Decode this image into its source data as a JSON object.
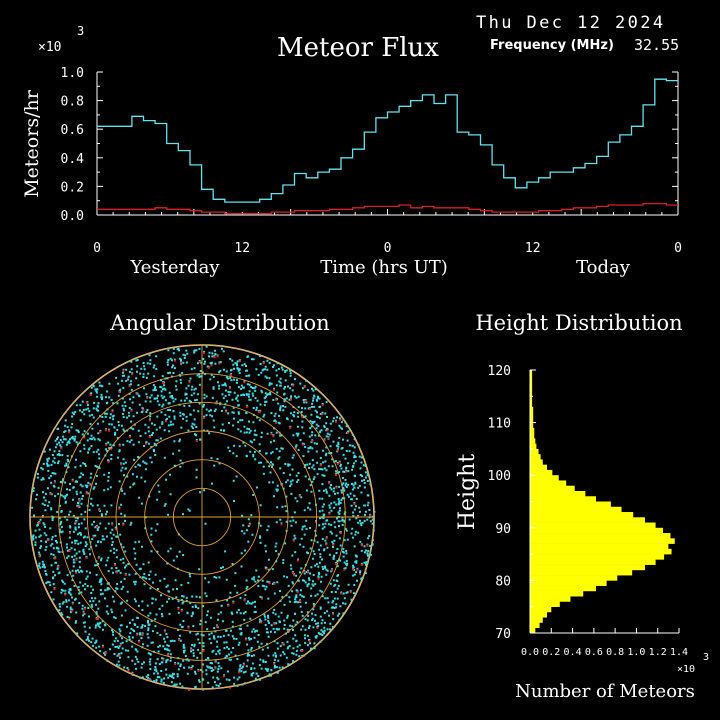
{
  "header": {
    "date": "Thu Dec 12 2024",
    "title": "Meteor Flux",
    "frequency_label": "Frequency (MHz)",
    "frequency_value": "32.55",
    "multiplier": "×10",
    "multiplier_exp": "3"
  },
  "colors": {
    "flux_total": "#5fe3ef",
    "flux_underdense": "#d42020",
    "axis": "#ffffff",
    "histogram": "#ffff00",
    "scatter_primary": "#38dfe8",
    "scatter_secondary": "#e02020",
    "rings": "#e0a030"
  },
  "chart_data": [
    {
      "type": "line",
      "title": "Meteor Flux",
      "xlabel": "Time (hrs UT)",
      "ylabel": "Meteors/hr",
      "y_multiplier": "×10 3",
      "ylim": [
        0,
        1.0
      ],
      "xlim": [
        0,
        72
      ],
      "step": true,
      "x_ticks": [
        0,
        12,
        24,
        36,
        48,
        60,
        72
      ],
      "x_tick_labels": [
        "0",
        "12",
        "0",
        "12",
        "0"
      ],
      "x_tick_label_positions": [
        0,
        12,
        24,
        36,
        48
      ],
      "y_ticks": [
        0.0,
        0.2,
        0.4,
        0.6,
        0.8,
        1.0
      ],
      "y_tick_labels": [
        "0.0",
        "0.2",
        "0.4",
        "0.6",
        "0.8",
        "1.0"
      ],
      "period_labels": [
        "Yesterday",
        "Time (hrs UT)",
        "Today"
      ],
      "series": [
        {
          "values": [
            0.62,
            0.62,
            0.62,
            0.69,
            0.66,
            0.64,
            0.5,
            0.45,
            0.35,
            0.18,
            0.11,
            0.09,
            0.09,
            0.09,
            0.11,
            0.15,
            0.21,
            0.29,
            0.26,
            0.3,
            0.32,
            0.4,
            0.46,
            0.58,
            0.68,
            0.72,
            0.76,
            0.8,
            0.84,
            0.78,
            0.84,
            0.58,
            0.56,
            0.49,
            0.35,
            0.26,
            0.19,
            0.23,
            0.26,
            0.3,
            0.3,
            0.33,
            0.36,
            0.41,
            0.51,
            0.56,
            0.62,
            0.77,
            0.95,
            0.94
          ]
        },
        {
          "values": [
            0.04,
            0.04,
            0.04,
            0.04,
            0.04,
            0.05,
            0.04,
            0.04,
            0.03,
            0.02,
            0.02,
            0.01,
            0.01,
            0.01,
            0.01,
            0.02,
            0.02,
            0.03,
            0.03,
            0.03,
            0.04,
            0.04,
            0.05,
            0.06,
            0.06,
            0.06,
            0.07,
            0.05,
            0.06,
            0.05,
            0.05,
            0.05,
            0.04,
            0.03,
            0.02,
            0.02,
            0.02,
            0.02,
            0.03,
            0.03,
            0.04,
            0.05,
            0.05,
            0.06,
            0.07,
            0.07,
            0.07,
            0.08,
            0.08,
            0.07
          ]
        }
      ]
    },
    {
      "type": "scatter",
      "title": "Angular Distribution",
      "projection": "polar",
      "rings": 6
    },
    {
      "type": "bar",
      "orientation": "horizontal",
      "title": "Height Distribution",
      "ylabel": "Height",
      "xlabel": "Number of Meteors",
      "x_multiplier": "×10 3",
      "ylim": [
        70,
        120
      ],
      "xlim": [
        0,
        1.4
      ],
      "y_ticks": [
        70,
        80,
        90,
        100,
        110,
        120
      ],
      "x_tick_labels": [
        "0.0",
        "0.2",
        "0.4",
        "0.6",
        "0.8",
        "1.0",
        "1.2",
        "1.4"
      ],
      "heights": [
        70,
        71,
        72,
        73,
        74,
        75,
        76,
        77,
        78,
        79,
        80,
        81,
        82,
        83,
        84,
        85,
        86,
        87,
        88,
        89,
        90,
        91,
        92,
        93,
        94,
        95,
        96,
        97,
        98,
        99,
        100,
        101,
        102,
        103,
        104,
        105,
        106,
        107,
        108,
        109,
        110,
        111,
        112,
        113,
        114,
        115,
        116,
        117,
        118,
        119
      ],
      "values": [
        0.05,
        0.09,
        0.12,
        0.16,
        0.2,
        0.28,
        0.38,
        0.5,
        0.62,
        0.72,
        0.82,
        0.96,
        1.08,
        1.18,
        1.26,
        1.33,
        1.3,
        1.36,
        1.32,
        1.25,
        1.18,
        1.08,
        0.97,
        0.86,
        0.76,
        0.62,
        0.52,
        0.42,
        0.34,
        0.27,
        0.21,
        0.16,
        0.12,
        0.1,
        0.08,
        0.06,
        0.05,
        0.04,
        0.04,
        0.03,
        0.03,
        0.03,
        0.03,
        0.02,
        0.02,
        0.02,
        0.02,
        0.02,
        0.02,
        0.02
      ]
    }
  ]
}
